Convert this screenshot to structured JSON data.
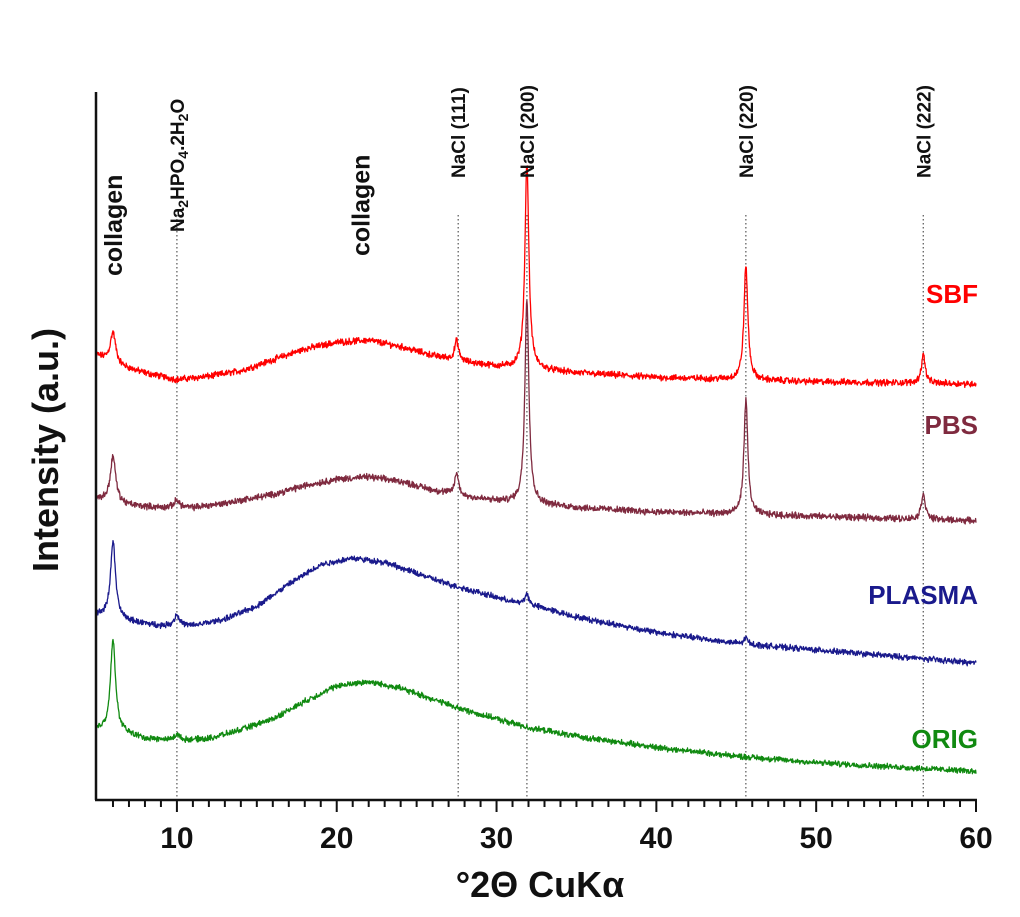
{
  "chart_data": {
    "type": "line",
    "title": "",
    "xlabel": "°2Θ CuKα",
    "ylabel": "Intensity (a.u.)",
    "xlim": [
      5,
      60
    ],
    "xticks": [
      10,
      20,
      30,
      40,
      50,
      60
    ],
    "x_tick_labels": [
      "10",
      "20",
      "30",
      "40",
      "50",
      "60"
    ],
    "y_ticks": "none",
    "grid": false,
    "reference_lines": [
      {
        "x": 10.0,
        "label": "Na2HPO4.2H2O"
      },
      {
        "x": 27.6,
        "label": "NaCl  (111)"
      },
      {
        "x": 31.9,
        "label": "NaCl  (200)"
      },
      {
        "x": 45.6,
        "label": "NaCl  (220)"
      },
      {
        "x": 56.7,
        "label": "NaCl  (222)"
      }
    ],
    "annotations": [
      {
        "x": 6.0,
        "text": "collagen"
      },
      {
        "x": 21.5,
        "text": "collagen"
      }
    ],
    "peak_label_parts": {
      "na2hpo4": [
        "Na",
        "2",
        "HPO",
        "4",
        ".2H",
        "2",
        "O"
      ]
    },
    "series": [
      {
        "name": "SBF",
        "color": "#ff0000",
        "offset": 3.2,
        "background": [
          [
            5,
            0.22
          ],
          [
            6.5,
            0.12
          ],
          [
            8,
            0.06
          ],
          [
            10,
            0.0
          ],
          [
            12,
            0.03
          ],
          [
            14,
            0.08
          ],
          [
            16,
            0.18
          ],
          [
            18,
            0.28
          ],
          [
            20,
            0.34
          ],
          [
            22,
            0.36
          ],
          [
            24,
            0.3
          ],
          [
            26,
            0.22
          ],
          [
            28,
            0.16
          ],
          [
            30,
            0.12
          ],
          [
            32,
            0.1
          ],
          [
            35,
            0.06
          ],
          [
            40,
            0.02
          ],
          [
            45,
            0.0
          ],
          [
            50,
            -0.02
          ],
          [
            55,
            -0.03
          ],
          [
            60,
            -0.04
          ]
        ],
        "peaks": [
          {
            "x": 6.0,
            "h": 0.28,
            "w": 0.3
          },
          {
            "x": 27.5,
            "h": 0.18,
            "w": 0.22
          },
          {
            "x": 31.9,
            "h": 1.88,
            "w": 0.22
          },
          {
            "x": 45.6,
            "h": 1.04,
            "w": 0.22
          },
          {
            "x": 56.7,
            "h": 0.26,
            "w": 0.22
          }
        ],
        "noise": 0.045
      },
      {
        "name": "PBS",
        "color": "#7f2a3f",
        "offset": 2.05,
        "background": [
          [
            5,
            0.06
          ],
          [
            7,
            0.0
          ],
          [
            9,
            -0.02
          ],
          [
            11,
            -0.02
          ],
          [
            13,
            0.02
          ],
          [
            16,
            0.1
          ],
          [
            18,
            0.18
          ],
          [
            20,
            0.24
          ],
          [
            22,
            0.26
          ],
          [
            24,
            0.22
          ],
          [
            26,
            0.14
          ],
          [
            28,
            0.08
          ],
          [
            30,
            0.04
          ],
          [
            32,
            0.02
          ],
          [
            35,
            -0.02
          ],
          [
            40,
            -0.06
          ],
          [
            45,
            -0.08
          ],
          [
            50,
            -0.1
          ],
          [
            55,
            -0.12
          ],
          [
            60,
            -0.14
          ]
        ],
        "peaks": [
          {
            "x": 6.0,
            "h": 0.42,
            "w": 0.3
          },
          {
            "x": 10.0,
            "h": 0.07,
            "w": 0.3
          },
          {
            "x": 27.5,
            "h": 0.2,
            "w": 0.22
          },
          {
            "x": 31.9,
            "h": 1.88,
            "w": 0.22
          },
          {
            "x": 45.6,
            "h": 1.04,
            "w": 0.22
          },
          {
            "x": 56.7,
            "h": 0.24,
            "w": 0.22
          }
        ],
        "noise": 0.045
      },
      {
        "name": "PLASMA",
        "color": "#1a1a8c",
        "offset": 1.05,
        "background": [
          [
            5,
            0.0
          ],
          [
            7,
            -0.06
          ],
          [
            9,
            -0.1
          ],
          [
            11,
            -0.1
          ],
          [
            13,
            -0.04
          ],
          [
            15,
            0.08
          ],
          [
            17,
            0.28
          ],
          [
            19,
            0.46
          ],
          [
            21,
            0.52
          ],
          [
            23,
            0.48
          ],
          [
            25,
            0.38
          ],
          [
            27,
            0.28
          ],
          [
            29,
            0.2
          ],
          [
            31,
            0.12
          ],
          [
            33,
            0.06
          ],
          [
            35,
            -0.02
          ],
          [
            40,
            -0.16
          ],
          [
            45,
            -0.26
          ],
          [
            50,
            -0.32
          ],
          [
            55,
            -0.38
          ],
          [
            60,
            -0.44
          ]
        ],
        "peaks": [
          {
            "x": 6.0,
            "h": 0.7,
            "w": 0.28
          },
          {
            "x": 10.0,
            "h": 0.1,
            "w": 0.3
          },
          {
            "x": 31.9,
            "h": 0.1,
            "w": 0.22
          },
          {
            "x": 45.6,
            "h": 0.06,
            "w": 0.2
          }
        ],
        "noise": 0.04
      },
      {
        "name": "ORIG",
        "color": "#118a11",
        "offset": 0.0,
        "background": [
          [
            5,
            0.0
          ],
          [
            6,
            0.0
          ],
          [
            8,
            -0.08
          ],
          [
            10,
            -0.1
          ],
          [
            12,
            -0.08
          ],
          [
            14,
            0.0
          ],
          [
            16,
            0.1
          ],
          [
            18,
            0.26
          ],
          [
            20,
            0.4
          ],
          [
            22,
            0.44
          ],
          [
            24,
            0.38
          ],
          [
            26,
            0.28
          ],
          [
            28,
            0.18
          ],
          [
            30,
            0.1
          ],
          [
            32,
            0.02
          ],
          [
            35,
            -0.06
          ],
          [
            40,
            -0.16
          ],
          [
            45,
            -0.24
          ],
          [
            50,
            -0.3
          ],
          [
            55,
            -0.34
          ],
          [
            60,
            -0.38
          ]
        ],
        "peaks": [
          {
            "x": 6.0,
            "h": 0.82,
            "w": 0.28
          },
          {
            "x": 10.0,
            "h": 0.06,
            "w": 0.3
          }
        ],
        "noise": 0.04
      }
    ],
    "ylim": [
      -0.55,
      5.8
    ]
  }
}
